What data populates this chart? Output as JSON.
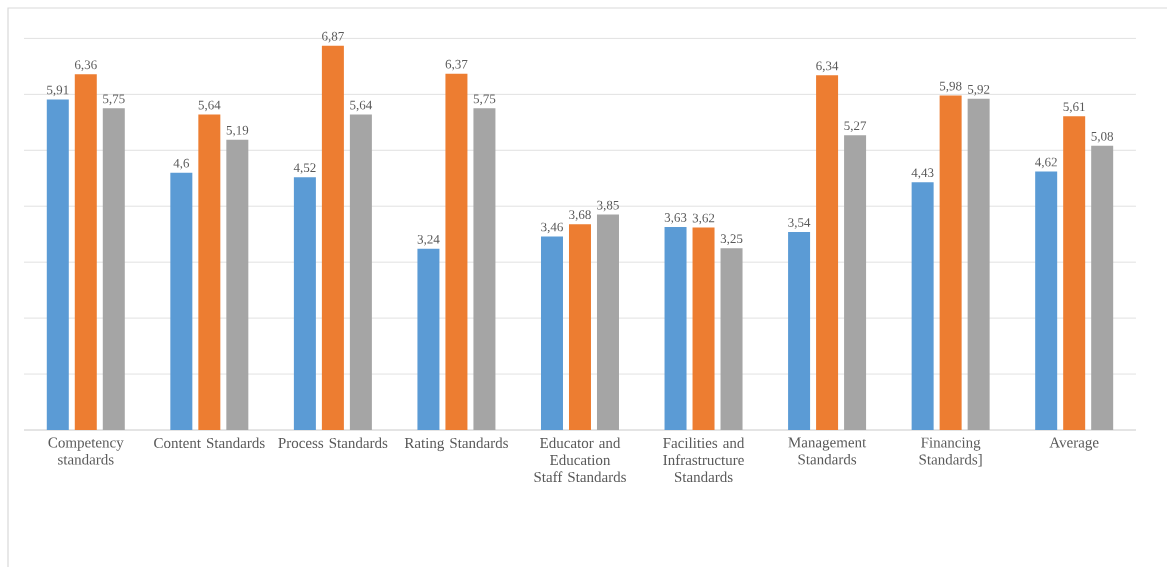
{
  "chart_data": {
    "type": "bar",
    "categories": [
      "Competency standards",
      "Content Standards",
      "Process Standards",
      "Rating Standards",
      "Educator and Education Staff Standards",
      "Facilities and Infrastructure Standards",
      "Management Standards",
      "Financing Standards]",
      "Average"
    ],
    "series": [
      {
        "color": "#5b9bd5",
        "values": [
          5.91,
          4.6,
          4.52,
          3.24,
          3.46,
          3.63,
          3.54,
          4.43,
          4.62
        ],
        "value_labels": [
          "5,91",
          "4,6",
          "4,52",
          "3,24",
          "3,46",
          "3,63",
          "3,54",
          "4,43",
          "4,62"
        ]
      },
      {
        "color": "#ed7d31",
        "values": [
          6.36,
          5.64,
          6.87,
          6.37,
          3.68,
          3.62,
          6.34,
          5.98,
          5.61
        ],
        "value_labels": [
          "6,36",
          "5,64",
          "6,87",
          "6,37",
          "3,68",
          "3,62",
          "6,34",
          "5,98",
          "5,61"
        ]
      },
      {
        "color": "#a5a5a5",
        "values": [
          5.75,
          5.19,
          5.64,
          5.75,
          3.85,
          3.25,
          5.27,
          5.92,
          5.08
        ],
        "value_labels": [
          "5,75",
          "5,19",
          "5,64",
          "5,75",
          "3,85",
          "3,25",
          "5,27",
          "5,92",
          "5,08"
        ]
      }
    ],
    "grid": "y",
    "tick_labels": "x"
  }
}
